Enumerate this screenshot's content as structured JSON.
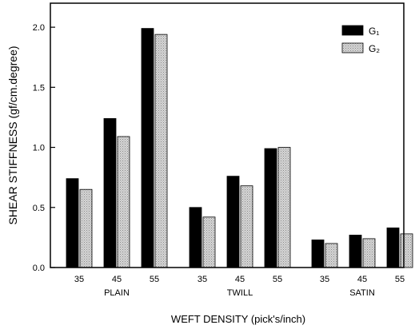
{
  "chart_data": {
    "type": "bar",
    "title": "",
    "xlabel": "WEFT DENSITY (pick's/inch)",
    "ylabel": "SHEAR STIFFNESS (gf/cm.degree)",
    "ylim": [
      0,
      2.2
    ],
    "yticks": [
      "0.0",
      "0.5",
      "1.0",
      "1.5",
      "2.0"
    ],
    "ytick_values": [
      0,
      0.5,
      1.0,
      1.5,
      2.0
    ],
    "groups": [
      {
        "label": "PLAIN",
        "categories": [
          "35",
          "45",
          "55"
        ]
      },
      {
        "label": "TWILL",
        "categories": [
          "35",
          "45",
          "55"
        ]
      },
      {
        "label": "SATIN",
        "categories": [
          "35",
          "45",
          "55"
        ]
      }
    ],
    "series": [
      {
        "name": "G₁",
        "color": "#000000",
        "values": [
          0.74,
          1.24,
          1.99,
          0.5,
          0.76,
          0.99,
          0.23,
          0.27,
          0.33
        ]
      },
      {
        "name": "G₂",
        "color": "#c8c8c8",
        "pattern": "dotted",
        "values": [
          0.65,
          1.09,
          1.94,
          0.42,
          0.68,
          1.0,
          0.2,
          0.24,
          0.28
        ]
      }
    ],
    "legend_position": "top-right",
    "grid": false
  }
}
